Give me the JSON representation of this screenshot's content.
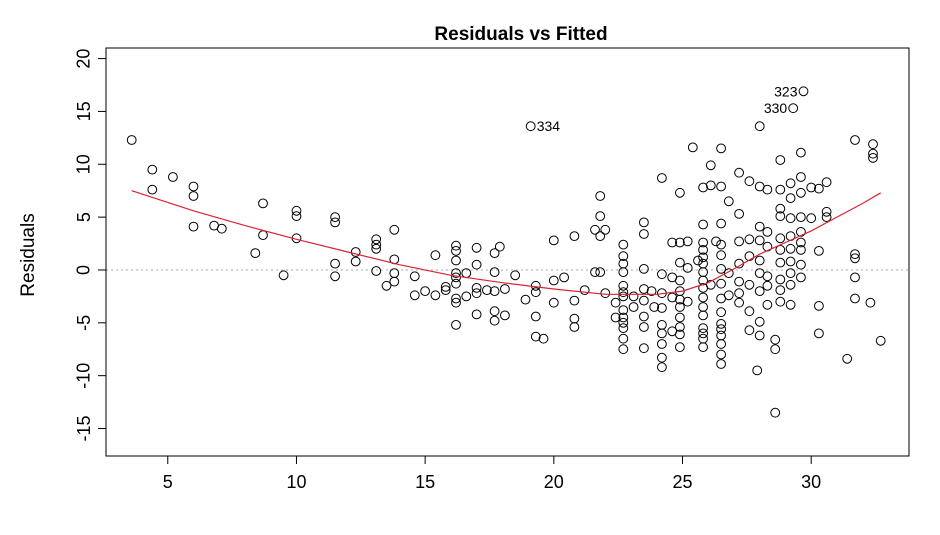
{
  "chart_data": {
    "type": "scatter",
    "title": "Residuals vs Fitted",
    "xlabel": "",
    "ylabel": "Residuals",
    "xlim": [
      2.6,
      33.8
    ],
    "ylim": [
      -17.6,
      21.0
    ],
    "x_ticks": [
      5,
      10,
      15,
      20,
      25,
      30
    ],
    "y_ticks": [
      -15,
      -10,
      -5,
      0,
      5,
      10,
      15,
      20
    ],
    "reference_line_y": 0,
    "smooth_line": {
      "color": "#dd2233",
      "x": [
        3.6,
        6,
        8,
        10,
        12,
        14,
        16,
        18,
        20,
        22,
        24,
        25,
        26,
        27,
        28,
        29,
        30,
        31,
        32,
        32.7
      ],
      "y": [
        7.5,
        5.6,
        4.2,
        2.9,
        1.7,
        0.5,
        -0.5,
        -1.2,
        -1.8,
        -2.3,
        -2.3,
        -2.0,
        -1.2,
        0.1,
        1.5,
        2.6,
        3.7,
        5.0,
        6.3,
        7.3
      ]
    },
    "annotations": [
      {
        "label": "334",
        "x": 19.1,
        "y": 13.6,
        "side": "right"
      },
      {
        "label": "323",
        "x": 29.7,
        "y": 16.9,
        "side": "left"
      },
      {
        "label": "330",
        "x": 29.3,
        "y": 15.3,
        "side": "left"
      }
    ],
    "points": [
      [
        3.6,
        12.3
      ],
      [
        4.4,
        9.5
      ],
      [
        4.4,
        7.6
      ],
      [
        5.2,
        8.8
      ],
      [
        6.0,
        7.9
      ],
      [
        6.0,
        7.0
      ],
      [
        6.0,
        4.1
      ],
      [
        6.8,
        4.2
      ],
      [
        7.1,
        3.9
      ],
      [
        8.4,
        1.6
      ],
      [
        8.7,
        6.3
      ],
      [
        8.7,
        3.3
      ],
      [
        9.5,
        -0.5
      ],
      [
        10.0,
        5.6
      ],
      [
        10.0,
        5.1
      ],
      [
        10.0,
        3.0
      ],
      [
        11.5,
        5.0
      ],
      [
        11.5,
        4.5
      ],
      [
        11.5,
        0.6
      ],
      [
        11.5,
        -0.6
      ],
      [
        12.3,
        1.7
      ],
      [
        12.3,
        0.8
      ],
      [
        13.1,
        2.9
      ],
      [
        13.1,
        2.4
      ],
      [
        13.1,
        2.0
      ],
      [
        13.1,
        -0.1
      ],
      [
        13.5,
        -1.5
      ],
      [
        13.8,
        3.8
      ],
      [
        13.8,
        1.0
      ],
      [
        13.8,
        -0.3
      ],
      [
        13.8,
        -1.1
      ],
      [
        14.6,
        -2.4
      ],
      [
        14.6,
        -0.6
      ],
      [
        15.0,
        -2.0
      ],
      [
        15.4,
        1.4
      ],
      [
        15.4,
        -2.4
      ],
      [
        15.8,
        -1.6
      ],
      [
        15.8,
        -1.9
      ],
      [
        16.2,
        2.3
      ],
      [
        16.2,
        1.8
      ],
      [
        16.2,
        0.9
      ],
      [
        16.2,
        -0.3
      ],
      [
        16.2,
        -0.7
      ],
      [
        16.2,
        -1.3
      ],
      [
        16.2,
        -2.7
      ],
      [
        16.2,
        -3.1
      ],
      [
        16.2,
        -5.2
      ],
      [
        16.6,
        -0.3
      ],
      [
        16.6,
        -2.5
      ],
      [
        17.0,
        2.1
      ],
      [
        17.0,
        0.5
      ],
      [
        17.0,
        -1.7
      ],
      [
        17.0,
        -2.2
      ],
      [
        17.0,
        -4.2
      ],
      [
        17.4,
        -1.9
      ],
      [
        17.7,
        1.6
      ],
      [
        17.7,
        -0.2
      ],
      [
        17.7,
        -2.0
      ],
      [
        17.7,
        -3.9
      ],
      [
        17.7,
        -4.8
      ],
      [
        17.9,
        2.2
      ],
      [
        18.1,
        -1.8
      ],
      [
        18.1,
        -4.3
      ],
      [
        18.5,
        -0.5
      ],
      [
        18.9,
        -2.8
      ],
      [
        19.3,
        -1.5
      ],
      [
        19.3,
        -2.1
      ],
      [
        19.3,
        -4.4
      ],
      [
        19.3,
        -6.3
      ],
      [
        19.6,
        -6.5
      ],
      [
        19.1,
        13.6
      ],
      [
        20.0,
        2.8
      ],
      [
        20.0,
        -1.0
      ],
      [
        20.0,
        -3.1
      ],
      [
        20.4,
        -0.7
      ],
      [
        20.8,
        3.2
      ],
      [
        20.8,
        -2.9
      ],
      [
        20.8,
        -4.6
      ],
      [
        20.8,
        -5.4
      ],
      [
        21.2,
        -1.9
      ],
      [
        21.6,
        3.8
      ],
      [
        21.6,
        -0.2
      ],
      [
        21.8,
        7.0
      ],
      [
        21.8,
        5.1
      ],
      [
        21.8,
        3.2
      ],
      [
        21.8,
        -0.2
      ],
      [
        22.0,
        3.8
      ],
      [
        22.0,
        -2.2
      ],
      [
        22.4,
        -3.1
      ],
      [
        22.4,
        -4.5
      ],
      [
        22.7,
        2.4
      ],
      [
        22.7,
        1.3
      ],
      [
        22.7,
        0.6
      ],
      [
        22.7,
        -0.2
      ],
      [
        22.7,
        -1.5
      ],
      [
        22.7,
        -2.1
      ],
      [
        22.7,
        -2.5
      ],
      [
        22.7,
        -3.8
      ],
      [
        22.7,
        -4.5
      ],
      [
        22.7,
        -5.0
      ],
      [
        22.7,
        -5.5
      ],
      [
        22.7,
        -6.5
      ],
      [
        22.7,
        -7.5
      ],
      [
        23.1,
        -2.5
      ],
      [
        23.1,
        -3.5
      ],
      [
        23.5,
        4.5
      ],
      [
        23.5,
        3.4
      ],
      [
        23.5,
        0.1
      ],
      [
        23.5,
        -1.8
      ],
      [
        23.5,
        -2.9
      ],
      [
        23.5,
        -4.4
      ],
      [
        23.5,
        -5.4
      ],
      [
        23.5,
        -7.4
      ],
      [
        23.8,
        -2.0
      ],
      [
        23.9,
        -3.5
      ],
      [
        24.2,
        8.7
      ],
      [
        24.2,
        -0.4
      ],
      [
        24.2,
        -2.2
      ],
      [
        24.2,
        -3.6
      ],
      [
        24.2,
        -5.2
      ],
      [
        24.2,
        -6.0
      ],
      [
        24.2,
        -7.0
      ],
      [
        24.2,
        -8.3
      ],
      [
        24.2,
        -9.2
      ],
      [
        24.6,
        2.6
      ],
      [
        24.6,
        -0.7
      ],
      [
        24.6,
        -2.6
      ],
      [
        24.6,
        -5.8
      ],
      [
        24.9,
        7.3
      ],
      [
        24.9,
        2.6
      ],
      [
        24.9,
        0.7
      ],
      [
        24.9,
        -1.0
      ],
      [
        24.9,
        -2.0
      ],
      [
        24.9,
        -2.8
      ],
      [
        24.9,
        -3.5
      ],
      [
        24.9,
        -4.5
      ],
      [
        24.9,
        -5.4
      ],
      [
        24.9,
        -6.1
      ],
      [
        24.9,
        -7.3
      ],
      [
        25.2,
        2.7
      ],
      [
        25.2,
        0.2
      ],
      [
        25.2,
        -3.0
      ],
      [
        25.4,
        11.6
      ],
      [
        25.6,
        0.9
      ],
      [
        25.8,
        7.8
      ],
      [
        25.8,
        4.3
      ],
      [
        25.8,
        2.6
      ],
      [
        25.8,
        1.9
      ],
      [
        25.8,
        1.2
      ],
      [
        25.8,
        0.6
      ],
      [
        25.8,
        -0.2
      ],
      [
        25.8,
        -1.0
      ],
      [
        25.8,
        -1.7
      ],
      [
        25.8,
        -2.6
      ],
      [
        25.8,
        -3.5
      ],
      [
        25.8,
        -4.3
      ],
      [
        25.8,
        -5.5
      ],
      [
        25.8,
        -6.0
      ],
      [
        25.8,
        -6.5
      ],
      [
        25.8,
        -7.3
      ],
      [
        26.1,
        9.9
      ],
      [
        26.1,
        8.0
      ],
      [
        26.1,
        -1.4
      ],
      [
        26.3,
        2.7
      ],
      [
        26.5,
        11.5
      ],
      [
        26.5,
        7.9
      ],
      [
        26.5,
        4.4
      ],
      [
        26.5,
        2.4
      ],
      [
        26.5,
        1.4
      ],
      [
        26.5,
        0.1
      ],
      [
        26.5,
        -1.3
      ],
      [
        26.5,
        -2.7
      ],
      [
        26.5,
        -4.0
      ],
      [
        26.5,
        -5.1
      ],
      [
        26.5,
        -5.6
      ],
      [
        26.5,
        -6.2
      ],
      [
        26.5,
        -7.0
      ],
      [
        26.5,
        -8.0
      ],
      [
        26.5,
        -8.9
      ],
      [
        26.8,
        6.5
      ],
      [
        26.8,
        -0.3
      ],
      [
        26.8,
        -2.4
      ],
      [
        27.2,
        9.2
      ],
      [
        27.2,
        5.3
      ],
      [
        27.2,
        2.7
      ],
      [
        27.2,
        0.6
      ],
      [
        27.2,
        -1.1
      ],
      [
        27.2,
        -2.2
      ],
      [
        27.2,
        -3.1
      ],
      [
        27.6,
        8.4
      ],
      [
        27.6,
        2.9
      ],
      [
        27.6,
        1.3
      ],
      [
        27.6,
        -1.4
      ],
      [
        27.6,
        -3.9
      ],
      [
        27.6,
        -5.7
      ],
      [
        27.9,
        -9.5
      ],
      [
        28.0,
        13.6
      ],
      [
        28.0,
        7.9
      ],
      [
        28.0,
        4.1
      ],
      [
        28.0,
        2.8
      ],
      [
        28.0,
        0.9
      ],
      [
        28.0,
        -0.3
      ],
      [
        28.0,
        -2.0
      ],
      [
        28.0,
        -4.9
      ],
      [
        28.0,
        -6.2
      ],
      [
        28.3,
        7.6
      ],
      [
        28.3,
        3.6
      ],
      [
        28.3,
        2.2
      ],
      [
        28.3,
        -0.6
      ],
      [
        28.3,
        -1.5
      ],
      [
        28.3,
        -3.3
      ],
      [
        28.6,
        -13.5
      ],
      [
        28.6,
        -7.5
      ],
      [
        28.6,
        -6.6
      ],
      [
        28.8,
        10.4
      ],
      [
        28.8,
        7.6
      ],
      [
        28.8,
        5.8
      ],
      [
        28.8,
        5.1
      ],
      [
        28.8,
        3.0
      ],
      [
        28.8,
        1.9
      ],
      [
        28.8,
        0.7
      ],
      [
        28.8,
        -0.9
      ],
      [
        28.8,
        -1.9
      ],
      [
        28.8,
        -3.0
      ],
      [
        29.2,
        8.2
      ],
      [
        29.2,
        6.8
      ],
      [
        29.2,
        4.9
      ],
      [
        29.2,
        3.2
      ],
      [
        29.2,
        2.0
      ],
      [
        29.2,
        0.8
      ],
      [
        29.2,
        -0.3
      ],
      [
        29.2,
        -1.4
      ],
      [
        29.2,
        -3.3
      ],
      [
        29.3,
        15.3
      ],
      [
        29.7,
        16.9
      ],
      [
        29.6,
        11.1
      ],
      [
        29.6,
        8.8
      ],
      [
        29.6,
        7.3
      ],
      [
        29.6,
        5.0
      ],
      [
        29.6,
        3.6
      ],
      [
        29.6,
        2.6
      ],
      [
        29.6,
        1.9
      ],
      [
        29.6,
        0.5
      ],
      [
        29.6,
        -0.7
      ],
      [
        30.0,
        7.8
      ],
      [
        30.0,
        4.9
      ],
      [
        30.3,
        7.7
      ],
      [
        30.3,
        1.8
      ],
      [
        30.3,
        -3.4
      ],
      [
        30.3,
        -6.0
      ],
      [
        30.6,
        8.3
      ],
      [
        30.6,
        5.5
      ],
      [
        30.6,
        5.0
      ],
      [
        31.4,
        -8.4
      ],
      [
        31.7,
        12.3
      ],
      [
        31.7,
        1.5
      ],
      [
        31.7,
        1.1
      ],
      [
        31.7,
        -0.7
      ],
      [
        31.7,
        -2.7
      ],
      [
        32.3,
        -3.1
      ],
      [
        32.4,
        11.9
      ],
      [
        32.4,
        11.0
      ],
      [
        32.4,
        10.6
      ],
      [
        32.7,
        -6.7
      ]
    ]
  }
}
